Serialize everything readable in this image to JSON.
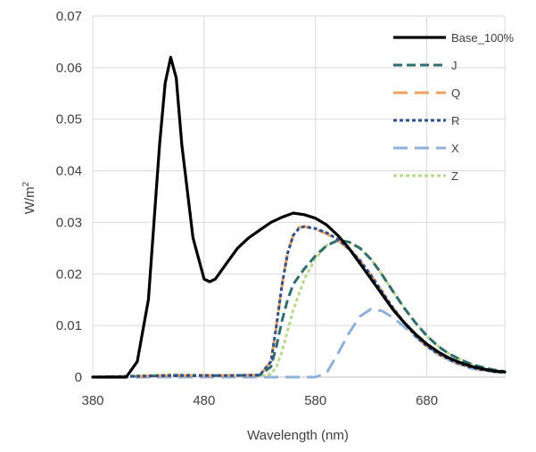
{
  "chart_data": {
    "type": "line",
    "xlabel": "Wavelength (nm)",
    "ylabel_main": "W/m",
    "ylabel_sup": "2",
    "xlim": [
      380,
      750
    ],
    "ylim": [
      0,
      0.07
    ],
    "x_ticks": [
      "380",
      "480",
      "580",
      "680"
    ],
    "y_ticks": [
      "0",
      "0.01",
      "0.02",
      "0.03",
      "0.04",
      "0.05",
      "0.06",
      "0.07"
    ],
    "grid": "vertical and horizontal major gridlines",
    "legend_position": "top-right",
    "series": [
      {
        "name": "Base_100%",
        "color": "#000000",
        "style": "solid",
        "x": [
          380,
          400,
          410,
          420,
          430,
          440,
          445,
          450,
          455,
          460,
          470,
          480,
          485,
          490,
          500,
          510,
          520,
          530,
          540,
          550,
          560,
          570,
          580,
          590,
          600,
          610,
          620,
          630,
          640,
          650,
          660,
          670,
          680,
          690,
          700,
          710,
          720,
          730,
          740,
          750
        ],
        "y": [
          0,
          0,
          0,
          0.003,
          0.015,
          0.045,
          0.057,
          0.062,
          0.058,
          0.045,
          0.027,
          0.019,
          0.0185,
          0.019,
          0.022,
          0.025,
          0.027,
          0.0285,
          0.03,
          0.031,
          0.0318,
          0.0315,
          0.0308,
          0.0295,
          0.0275,
          0.025,
          0.022,
          0.019,
          0.016,
          0.013,
          0.0105,
          0.0083,
          0.0064,
          0.0049,
          0.0037,
          0.0028,
          0.0021,
          0.0016,
          0.0012,
          0.001
        ]
      },
      {
        "name": "J",
        "color": "#2e6e6e",
        "style": "dash",
        "x": [
          380,
          450,
          500,
          530,
          540,
          545,
          550,
          555,
          560,
          570,
          580,
          590,
          600,
          610,
          620,
          630,
          640,
          650,
          660,
          670,
          680,
          690,
          700,
          710,
          720,
          730,
          740,
          750
        ],
        "y": [
          0,
          0.0003,
          0.0003,
          0.0004,
          0.002,
          0.006,
          0.011,
          0.015,
          0.018,
          0.021,
          0.0235,
          0.0255,
          0.0265,
          0.0262,
          0.025,
          0.0228,
          0.0198,
          0.0165,
          0.0133,
          0.0105,
          0.008,
          0.006,
          0.0045,
          0.0034,
          0.0025,
          0.0019,
          0.0014,
          0.0011
        ]
      },
      {
        "name": "Q",
        "color": "#f0a060",
        "style": "longdash",
        "x": [
          380,
          450,
          500,
          530,
          540,
          545,
          550,
          555,
          560,
          565,
          570,
          580,
          590,
          600,
          610,
          620,
          630,
          640,
          650,
          660,
          670,
          680,
          690,
          700,
          710,
          720,
          730,
          740,
          750
        ],
        "y": [
          0,
          0.0003,
          0.0003,
          0.0004,
          0.003,
          0.01,
          0.018,
          0.024,
          0.0275,
          0.029,
          0.0292,
          0.0287,
          0.0278,
          0.0266,
          0.0248,
          0.0226,
          0.0197,
          0.0165,
          0.0133,
          0.0105,
          0.008,
          0.006,
          0.0045,
          0.0034,
          0.0025,
          0.0019,
          0.0014,
          0.0011,
          0.0009
        ]
      },
      {
        "name": "R",
        "color": "#2f4f8f",
        "style": "dot",
        "x": [
          380,
          450,
          500,
          530,
          540,
          545,
          550,
          555,
          560,
          565,
          570,
          580,
          590,
          600,
          610,
          620,
          630,
          640,
          650,
          660,
          670,
          680,
          690,
          700,
          710,
          720,
          730,
          740,
          750
        ],
        "y": [
          0,
          0.0003,
          0.0003,
          0.0004,
          0.003,
          0.01,
          0.018,
          0.024,
          0.0275,
          0.0288,
          0.0292,
          0.0288,
          0.028,
          0.0267,
          0.0249,
          0.0226,
          0.0197,
          0.0165,
          0.0133,
          0.0105,
          0.008,
          0.006,
          0.0045,
          0.0034,
          0.0025,
          0.0019,
          0.0014,
          0.0011,
          0.0009
        ]
      },
      {
        "name": "X",
        "color": "#8fb0d8",
        "style": "longdash",
        "x": [
          380,
          570,
          580,
          590,
          600,
          610,
          620,
          630,
          640,
          650,
          660,
          670,
          680,
          690,
          700,
          710,
          720,
          730,
          740,
          750
        ],
        "y": [
          0,
          0,
          0,
          0.0008,
          0.0045,
          0.0085,
          0.0118,
          0.0132,
          0.0128,
          0.0115,
          0.0097,
          0.0078,
          0.006,
          0.0045,
          0.0033,
          0.0024,
          0.0017,
          0.0013,
          0.001,
          0.0008
        ]
      },
      {
        "name": "Z",
        "color": "#b8d88a",
        "style": "dot",
        "x": [
          380,
          450,
          500,
          530,
          540,
          545,
          550,
          555,
          560,
          570,
          580,
          590,
          600,
          610,
          620,
          630,
          640,
          650,
          660,
          670,
          680,
          690,
          700,
          710,
          720,
          730,
          740,
          750
        ],
        "y": [
          0,
          0.0005,
          0.0003,
          0.0003,
          0.0006,
          0.002,
          0.005,
          0.009,
          0.013,
          0.019,
          0.023,
          0.0255,
          0.0266,
          0.0262,
          0.025,
          0.0228,
          0.0198,
          0.0165,
          0.0133,
          0.0105,
          0.008,
          0.006,
          0.0045,
          0.0034,
          0.0025,
          0.0019,
          0.0014,
          0.0011
        ]
      }
    ]
  }
}
